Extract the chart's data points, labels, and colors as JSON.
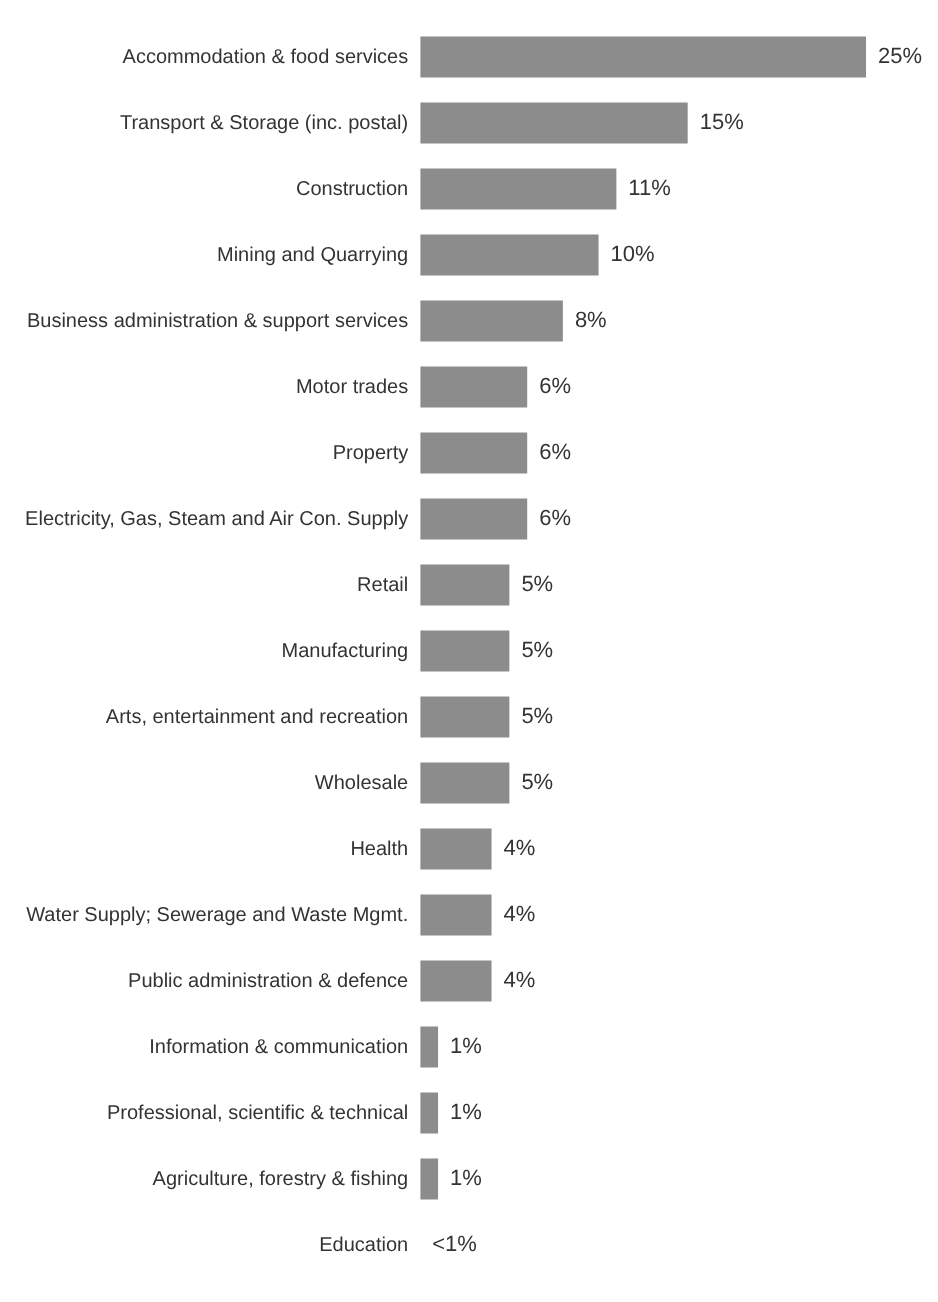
{
  "chart_data": {
    "type": "bar",
    "orientation": "horizontal",
    "categories": [
      "Accommodation & food services",
      "Transport & Storage (inc. postal)",
      "Construction",
      "Mining and Quarrying",
      "Business administration & support services",
      "Motor trades",
      "Property",
      "Electricity, Gas, Steam and Air Con. Supply",
      "Retail",
      "Manufacturing",
      "Arts, entertainment and recreation",
      "Wholesale",
      "Health",
      "Water Supply; Sewerage and Waste Mgmt.",
      "Public administration & defence",
      "Information & communication",
      "Professional, scientific & technical",
      "Agriculture, forestry & fishing",
      "Education"
    ],
    "values": [
      25,
      15,
      11,
      10,
      8,
      6,
      6,
      6,
      5,
      5,
      5,
      5,
      4,
      4,
      4,
      1,
      1,
      1,
      0
    ],
    "value_labels": [
      "25%",
      "15%",
      "11%",
      "10%",
      "8%",
      "6%",
      "6%",
      "6%",
      "5%",
      "5%",
      "5%",
      "5%",
      "4%",
      "4%",
      "4%",
      "1%",
      "1%",
      "1%",
      "<1%"
    ],
    "color": "#8c8c8c",
    "xlim": [
      0,
      25
    ],
    "tick_labels": "y",
    "legend": false
  }
}
